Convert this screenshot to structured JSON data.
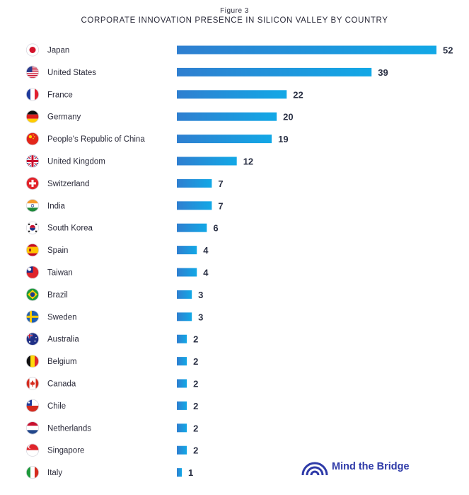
{
  "figure_label": "Figure 3",
  "brand": {
    "name": "Mind the Bridge"
  },
  "colors": {
    "bar_start": "#2f7fd0",
    "bar_end": "#12a8e6",
    "text": "#2b2b3a",
    "brand": "#2e3aa8"
  },
  "chart_data": {
    "type": "bar",
    "orientation": "horizontal",
    "title": "CORPORATE INNOVATION PRESENCE IN SILICON VALLEY BY COUNTRY",
    "xlabel": "",
    "ylabel": "",
    "xlim": [
      0,
      52
    ],
    "grid": false,
    "data_labels": true,
    "categories": [
      "Japan",
      "United States",
      "France",
      "Germany",
      "People's Republic of China",
      "United Kingdom",
      "Switzerland",
      "India",
      "South Korea",
      "Spain",
      "Taiwan",
      "Brazil",
      "Sweden",
      "Australia",
      "Belgium",
      "Canada",
      "Chile",
      "Netherlands",
      "Singapore",
      "Italy"
    ],
    "values": [
      52,
      39,
      22,
      20,
      19,
      12,
      7,
      7,
      6,
      4,
      4,
      3,
      3,
      2,
      2,
      2,
      2,
      2,
      2,
      1
    ],
    "flags": [
      "japan-flag-icon",
      "united-states-flag-icon",
      "france-flag-icon",
      "germany-flag-icon",
      "china-flag-icon",
      "united-kingdom-flag-icon",
      "switzerland-flag-icon",
      "india-flag-icon",
      "south-korea-flag-icon",
      "spain-flag-icon",
      "taiwan-flag-icon",
      "brazil-flag-icon",
      "sweden-flag-icon",
      "australia-flag-icon",
      "belgium-flag-icon",
      "canada-flag-icon",
      "chile-flag-icon",
      "netherlands-flag-icon",
      "singapore-flag-icon",
      "italy-flag-icon"
    ]
  }
}
